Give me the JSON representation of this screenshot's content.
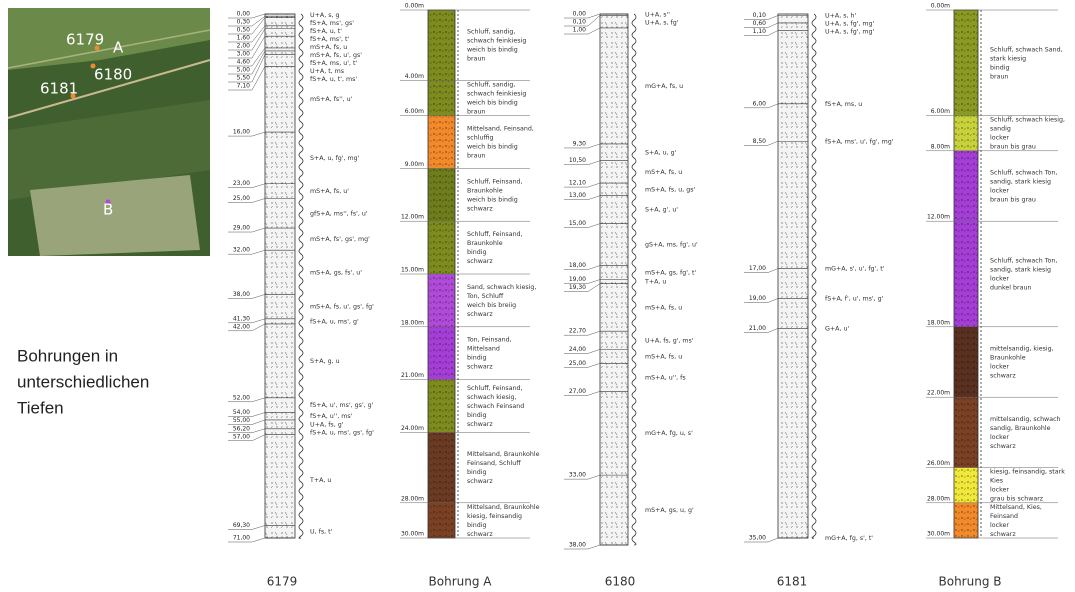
{
  "map": {
    "labels": [
      "6179",
      "A",
      "6180",
      "6181",
      "B"
    ]
  },
  "caption": [
    "Bohrungen in",
    "unterschiedlichen",
    "Tiefen"
  ],
  "columns": [
    {
      "type": "drilling_log",
      "name": "6179",
      "layers": [
        {
          "depth": "0,00",
          "desc": "U+A, s, g"
        },
        {
          "depth": "0,30",
          "desc": "fS+A, ms', gs'"
        },
        {
          "depth": "0,50",
          "desc": "fS+A, u, t'"
        },
        {
          "depth": "1,60",
          "desc": "fS+A, ms', t'"
        },
        {
          "depth": "2,00",
          "desc": "mS+A, fs, u"
        },
        {
          "depth": "3,00",
          "desc": "mS+A, fs, u', gs'"
        },
        {
          "depth": "4,60",
          "desc": "fS+A, ms, u', t'"
        },
        {
          "depth": "5,00",
          "desc": "U+A, t, ms"
        },
        {
          "depth": "5,50",
          "desc": "fS+A, u, t', ms'"
        },
        {
          "depth": "7,10",
          "desc": "mS+A, fs'', u'"
        },
        {
          "depth": "16,00",
          "desc": "S+A, u, fg', mg'"
        },
        {
          "depth": "23,00",
          "desc": "mS+A, fs, u'"
        },
        {
          "depth": "25,00",
          "desc": "gfS+A, ms'', fs', u'"
        },
        {
          "depth": "29,00",
          "desc": "mS+A, fs', gs', mg'"
        },
        {
          "depth": "32,00",
          "desc": "mS+A, gs, fs', u'"
        },
        {
          "depth": "38,00",
          "desc": "mS+A, fs, u', gs', fg'"
        },
        {
          "depth": "41,30",
          "desc": "fS+A, u, ms', g'"
        },
        {
          "depth": "42,00",
          "desc": "S+A, g, u"
        },
        {
          "depth": "52,00",
          "desc": "fS+A, u', ms', gs', g'"
        },
        {
          "depth": "54,00",
          "desc": "fS+A, u'', ms'"
        },
        {
          "depth": "55,00",
          "desc": "U+A, fs, g'"
        },
        {
          "depth": "56,20",
          "desc": "fS+A, u, ms', gs', fg'"
        },
        {
          "depth": "57,00",
          "desc": "T+A, u"
        },
        {
          "depth": "69,30",
          "desc": "U, fs, t'"
        },
        {
          "depth": "71,00"
        }
      ]
    },
    {
      "type": "profile",
      "name": "Bohrung A",
      "ticks": [
        "0.00m",
        "4.00m",
        "6.00m",
        "9.00m",
        "12.00m",
        "15.00m",
        "18.00m",
        "21.00m",
        "24.00m",
        "28.00m",
        "30.00m"
      ],
      "layers": [
        {
          "color": "#7d8b1f",
          "lines": [
            "Schluff, sandig,",
            "schwach feinkiesig",
            "weich bis bindig",
            "braun"
          ]
        },
        {
          "color": "#7d8b1f",
          "lines": [
            "Schluff, sandig,",
            "schwach feinkiesig",
            "weich bis bindig",
            "braun"
          ]
        },
        {
          "color": "#f2892b",
          "lines": [
            "Mittelsand, Feinsand,",
            "schluffig",
            "weich bis bindig",
            "braun"
          ]
        },
        {
          "color": "#6f7d1c",
          "lines": [
            "Schluff, Feinsand,",
            "Braunkohle",
            "weich bis bindig",
            "schwarz"
          ]
        },
        {
          "color": "#7d8b1f",
          "lines": [
            "Schluff, Feinsand,",
            "Braunkohle",
            "bindig",
            "schwarz"
          ]
        },
        {
          "color": "#b04ad8",
          "lines": [
            "Sand, schwach kiesig,",
            "Ton, Schluff",
            "weich bis breiig",
            "schwarz"
          ]
        },
        {
          "color": "#a43ed6",
          "lines": [
            "Ton, Feinsand,",
            "Mittelsand",
            "bindig",
            "schwarz"
          ]
        },
        {
          "color": "#7d8b1f",
          "lines": [
            "Schluff, Feinsand,",
            "schwach kiesig,",
            "schwach Feinsand",
            "bindig",
            "schwarz"
          ]
        },
        {
          "color": "#6b3a22",
          "lines": [
            "Mittelsand, Braunkohle",
            "Feinsand, Schluff",
            "bindig",
            "schwarz"
          ]
        },
        {
          "color": "#7a4124",
          "lines": [
            "Mittelsand, Braunkohle",
            "kiesig, feinsandig",
            "bindig",
            "schwarz"
          ]
        }
      ]
    },
    {
      "type": "drilling_log",
      "name": "6180",
      "layers": [
        {
          "depth": "0,00",
          "desc": "U+A, s''"
        },
        {
          "depth": "0,10",
          "desc": "U+A, s, fg'"
        },
        {
          "depth": "1,00",
          "desc": "mG+A, fs, u"
        },
        {
          "depth": "9,30",
          "desc": "S+A, u, g'"
        },
        {
          "depth": "10,50",
          "desc": "mS+A, fs, u"
        },
        {
          "depth": "12,10",
          "desc": "mS+A, fs, u, gs'"
        },
        {
          "depth": "13,00",
          "desc": "S+A, g', u'"
        },
        {
          "depth": "15,00",
          "desc": "gS+A, ms, fg', u'"
        },
        {
          "depth": "18,00",
          "desc": "mS+A, gs, fg', t'"
        },
        {
          "depth": "19,00",
          "desc": "T+A, u"
        },
        {
          "depth": "19,30",
          "desc": "mS+A, fs, u"
        },
        {
          "depth": "22,70",
          "desc": "U+A, fs, g', ms'"
        },
        {
          "depth": "24,00",
          "desc": "mS+A, fs, u"
        },
        {
          "depth": "25,00",
          "desc": "mS+A, u'', fs"
        },
        {
          "depth": "27,00",
          "desc": "mG+A, fg, u, s'"
        },
        {
          "depth": "33,00",
          "desc": "mS+A, gs, u, g'"
        },
        {
          "depth": "38,00"
        }
      ]
    },
    {
      "type": "drilling_log",
      "name": "6181",
      "layers": [
        {
          "depth": "0,10",
          "desc": "U+A, s, h'"
        },
        {
          "depth": "0,60",
          "desc": "U+A, s, fg', mg'"
        },
        {
          "depth": "1,10",
          "desc": "U+A, s, fg', mg'"
        },
        {
          "depth": "6,00",
          "desc": "fS+A, ms, u"
        },
        {
          "depth": "8,50",
          "desc": "fS+A, ms', u', fg', mg'"
        },
        {
          "depth": "17,00",
          "desc": "mG+A, s', u', fg', t'"
        },
        {
          "depth": "19,00",
          "desc": "fS+A, f', u', ms', g'"
        },
        {
          "depth": "21,00",
          "desc": "G+A, u'"
        },
        {
          "depth": "35,00",
          "desc": "mG+A, fg, s', t'"
        }
      ]
    },
    {
      "type": "profile",
      "name": "Bohrung B",
      "ticks": [
        "0.00m",
        "6.00m",
        "8.00m",
        "12.00m",
        "18.00m",
        "22.00m",
        "26.00m",
        "28.00m",
        "30.00m"
      ],
      "layers": [
        {
          "color": "#8a9a22",
          "lines": [
            "Schluff, schwach Sand,",
            "stark kiesig",
            "bindig",
            "braun"
          ]
        },
        {
          "color": "#c8d23a",
          "lines": [
            "Schluff, schwach kiesig,",
            "sandig",
            "locker",
            "braun bis grau"
          ]
        },
        {
          "color": "#a43ed6",
          "lines": [
            "Schluff, schwach Ton,",
            "sandig, stark kiesig",
            "locker",
            "braun bis grau"
          ]
        },
        {
          "color": "#a43ed6",
          "lines": [
            "Schluff, schwach Ton,",
            "sandig, stark kiesig",
            "locker",
            "dunkel braun"
          ]
        },
        {
          "color": "#5a3020",
          "lines": [
            "mittelsandig, kiesig,",
            "Braunkohle",
            "locker",
            "schwarz"
          ]
        },
        {
          "color": "#7a4124",
          "lines": [
            "mittelsandig, schwach",
            "sandig, Braunkohle",
            "locker",
            "schwarz"
          ]
        },
        {
          "color": "#f0e83a",
          "lines": [
            "kiesig, feinsandig, stark",
            "Kies",
            "locker",
            "grau bis schwarz"
          ]
        },
        {
          "color": "#f2892b",
          "lines": [
            "Mittelsand, Kies,",
            "Feinsand",
            "locker",
            "schwarz"
          ]
        }
      ]
    }
  ]
}
